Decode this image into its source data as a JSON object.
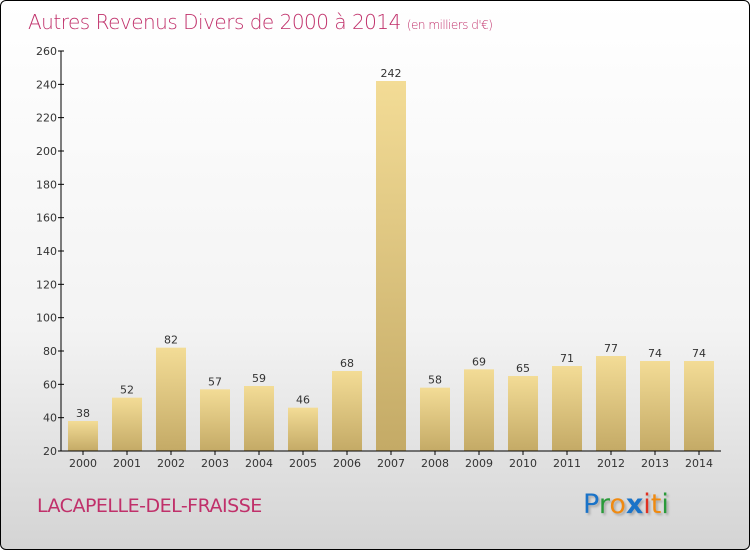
{
  "chart_data": {
    "type": "bar",
    "title": "Autres Revenus Divers de 2000 à 2014",
    "unit": "(en milliers d'€)",
    "categories": [
      "2000",
      "2001",
      "2002",
      "2003",
      "2004",
      "2005",
      "2006",
      "2007",
      "2008",
      "2009",
      "2010",
      "2011",
      "2012",
      "2013",
      "2014"
    ],
    "values": [
      38,
      52,
      82,
      57,
      59,
      46,
      68,
      242,
      58,
      69,
      65,
      71,
      77,
      74,
      74
    ],
    "ylim": [
      20,
      260
    ],
    "yticks": [
      20,
      40,
      60,
      80,
      100,
      120,
      140,
      160,
      180,
      200,
      220,
      240,
      260
    ],
    "xlabel": "",
    "ylabel": "",
    "bar_color_top": "#f3dc96",
    "bar_color_bottom": "#c4aa66"
  },
  "footer": {
    "place": "LACAPELLE-DEL-FRAISSE",
    "logo": "Proxiti"
  }
}
